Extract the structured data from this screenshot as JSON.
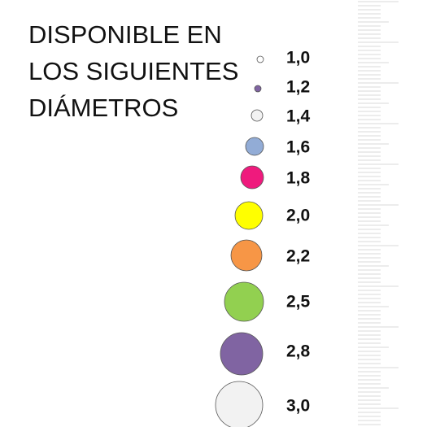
{
  "header": {
    "title_lines": [
      "DISPONIBLE EN",
      "LOS SIGUIENTES",
      "DIÁMETROS"
    ]
  },
  "items": [
    {
      "label": "1,0",
      "color": "#ffffff"
    },
    {
      "label": "1,2",
      "color": "#8064a2"
    },
    {
      "label": "1,4",
      "color": "#f2f2f2"
    },
    {
      "label": "1,6",
      "color": "#92acd6"
    },
    {
      "label": "1,8",
      "color": "#ef1a7d"
    },
    {
      "label": "2,0",
      "color": "#ffff00"
    },
    {
      "label": "2,2",
      "color": "#f79646"
    },
    {
      "label": "2,5",
      "color": "#92d050"
    },
    {
      "label": "2,8",
      "color": "#8064a2"
    },
    {
      "label": "3,0",
      "color": "#f2f2f2"
    }
  ]
}
